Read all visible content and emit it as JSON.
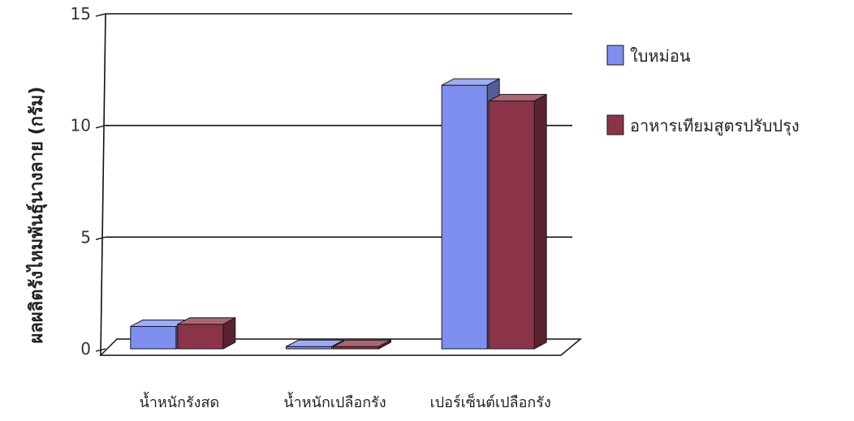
{
  "chart_data": {
    "type": "bar",
    "title": "",
    "xlabel": "",
    "ylabel": "ผลผลิตรังไหมพันธุ์นางลาย (กรัม)",
    "ylim": [
      0,
      15
    ],
    "yticks": [
      0,
      5,
      10,
      15
    ],
    "grid": true,
    "legend_position": "right",
    "categories": [
      "น้ำหนักรังสด",
      "น้ำหนักเปลือกรัง",
      "เปอร์เซ็นต์เปลือกรัง"
    ],
    "series": [
      {
        "name": "ใบหม่อน",
        "color": "#7f8ff0",
        "values": [
          1.0,
          0.1,
          11.8
        ]
      },
      {
        "name": "อาหารเทียมสูตรปรับปรุง",
        "color": "#8b3348",
        "values": [
          1.1,
          0.1,
          11.1
        ]
      }
    ]
  }
}
